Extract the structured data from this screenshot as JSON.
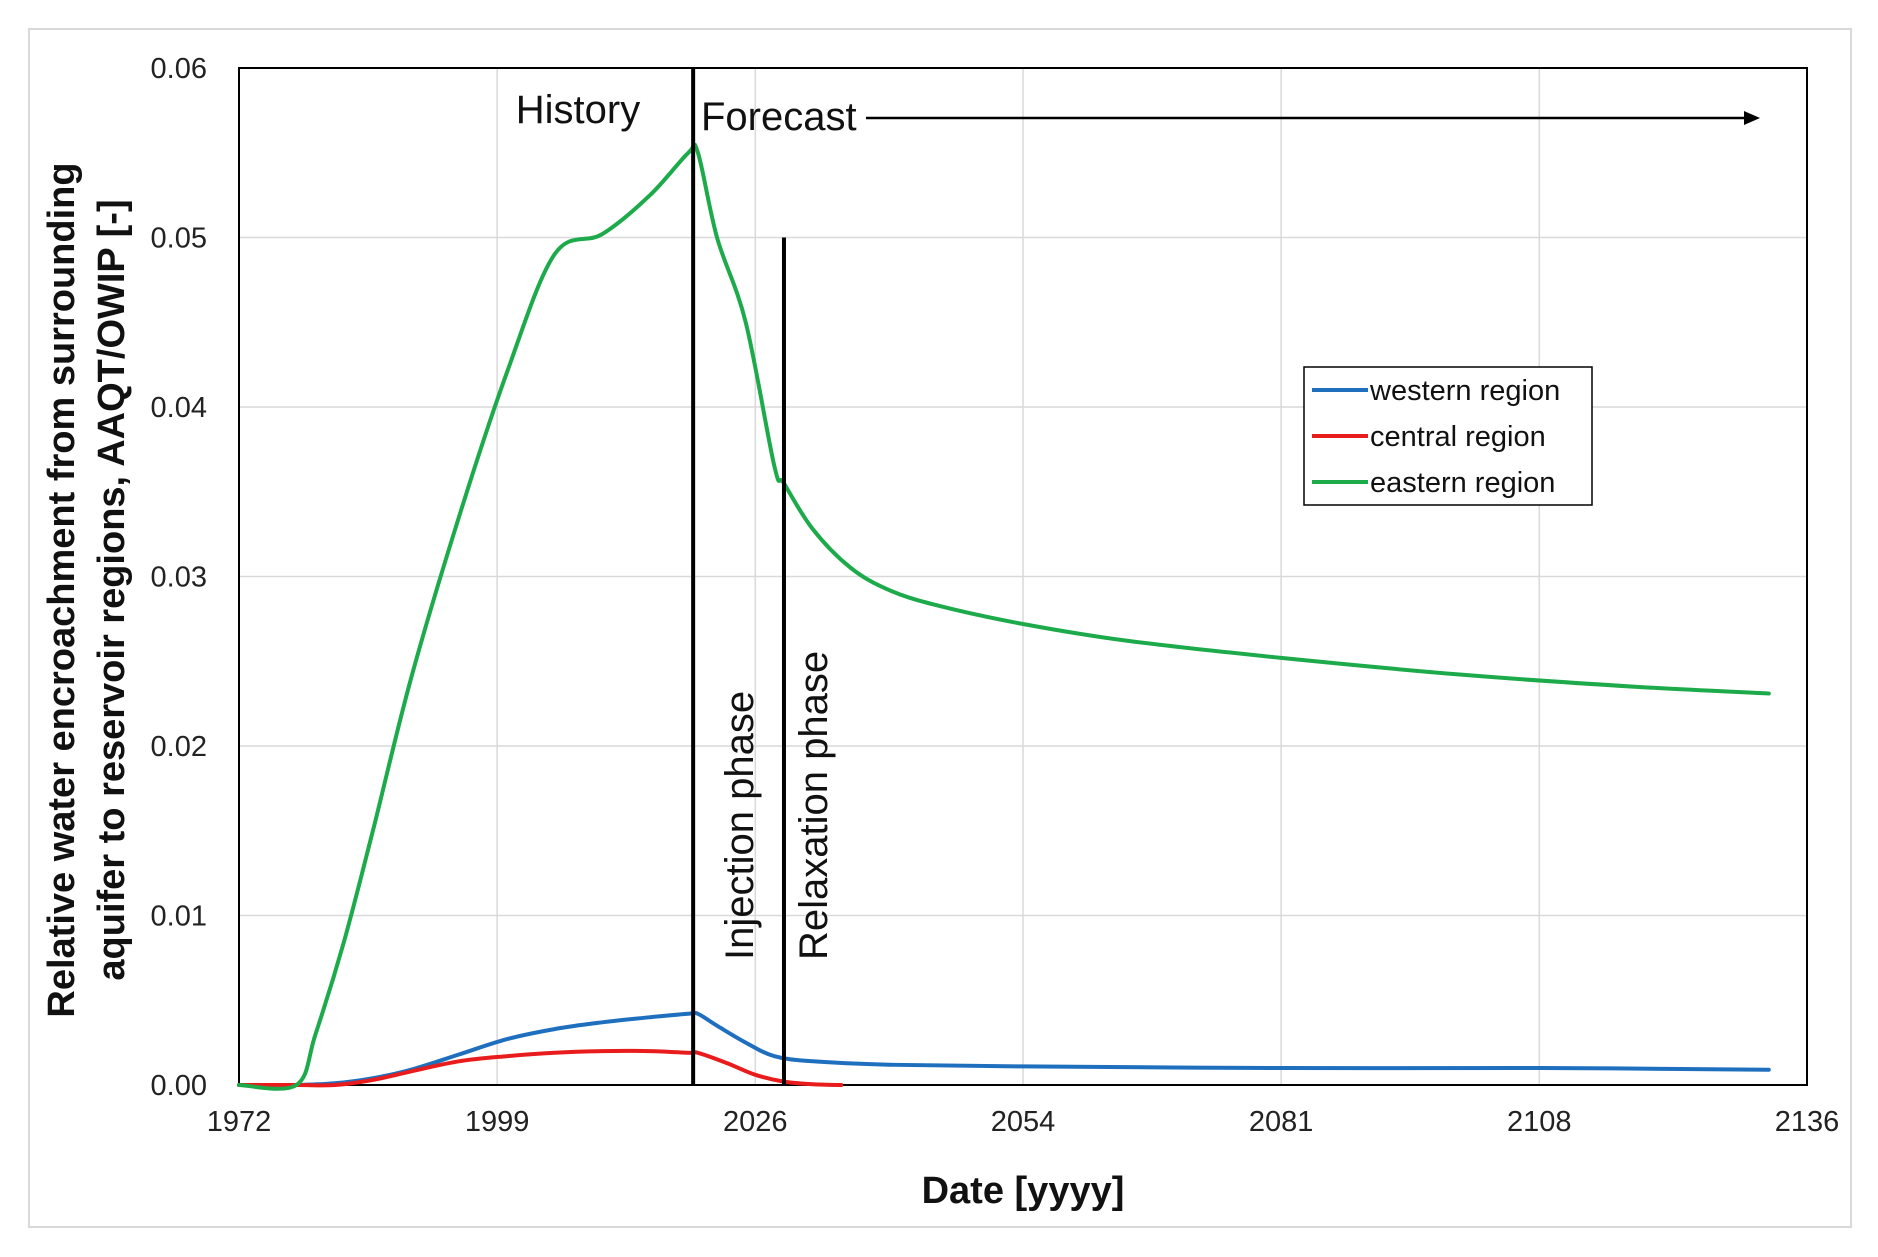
{
  "chart_data": {
    "type": "line",
    "title": "",
    "xlabel": "Date [yyyy]",
    "ylabel_line1": "Relative water encroachment from surrounding",
    "ylabel_line2": "aquifer to reservoir regions, AAQT/OWIP [-]",
    "xlim": [
      1972,
      2136
    ],
    "ylim": [
      0,
      0.06
    ],
    "x_ticks": [
      1972,
      1999,
      2026,
      2054,
      2081,
      2108,
      2136
    ],
    "x_tick_labels": [
      "1972",
      "1999",
      "2026",
      "2054",
      "2081",
      "2108",
      "2136"
    ],
    "y_ticks": [
      0,
      0.01,
      0.02,
      0.03,
      0.04,
      0.05,
      0.06
    ],
    "y_tick_labels": [
      "0.00",
      "0.01",
      "0.02",
      "0.03",
      "0.04",
      "0.05",
      "0.06"
    ],
    "grid": true,
    "legend_position": "center-right",
    "series": [
      {
        "name": "western region",
        "color": "#1f6fbf",
        "x": [
          1972,
          1978,
          1982,
          1986,
          1990,
          1995,
          2000,
          2005,
          2010,
          2015,
          2019,
          2020,
          2022,
          2025,
          2028,
          2032,
          2040,
          2054,
          2081,
          2108,
          2132
        ],
        "y": [
          0,
          0,
          0.0001,
          0.0004,
          0.0009,
          0.0018,
          0.0027,
          0.0033,
          0.0037,
          0.004,
          0.0042,
          0.0042,
          0.0035,
          0.0025,
          0.0017,
          0.0014,
          0.0012,
          0.0011,
          0.001,
          0.001,
          0.0009
        ]
      },
      {
        "name": "central region",
        "color": "#e81c1c",
        "x": [
          1972,
          1978,
          1982,
          1986,
          1990,
          1995,
          2000,
          2005,
          2010,
          2015,
          2019,
          2020,
          2023,
          2026,
          2029,
          2032,
          2035
        ],
        "y": [
          0,
          0,
          0,
          0.0003,
          0.0008,
          0.0014,
          0.0017,
          0.0019,
          0.002,
          0.002,
          0.0019,
          0.0019,
          0.0013,
          0.0006,
          0.0002,
          5e-05,
          0
        ]
      },
      {
        "name": "eastern region",
        "color": "#1daa4b",
        "x": [
          1972,
          1978,
          1980,
          1983,
          1986,
          1990,
          1995,
          2000,
          2005,
          2010,
          2015,
          2019,
          2020,
          2022,
          2025,
          2028,
          2029,
          2032,
          2036,
          2040,
          2045,
          2054,
          2065,
          2081,
          2100,
          2118,
          2132
        ],
        "y": [
          0,
          0,
          0.003,
          0.0085,
          0.015,
          0.024,
          0.0335,
          0.042,
          0.049,
          0.0502,
          0.0525,
          0.055,
          0.055,
          0.05,
          0.045,
          0.0365,
          0.0355,
          0.0328,
          0.0305,
          0.0292,
          0.0283,
          0.0272,
          0.0262,
          0.0252,
          0.0242,
          0.0235,
          0.0231
        ]
      }
    ],
    "vertical_lines": [
      {
        "x": 2019.5,
        "y_top": 0.06
      },
      {
        "x": 2029,
        "y_top": 0.05
      }
    ],
    "annotations": {
      "history": "History",
      "forecast": "Forecast",
      "injection_phase": "Injection phase",
      "relaxation_phase": "Relaxation phase"
    },
    "legend": [
      "western region",
      "central region",
      "eastern region"
    ]
  }
}
